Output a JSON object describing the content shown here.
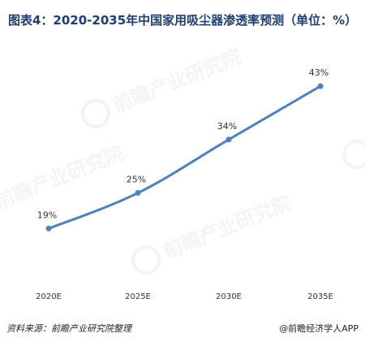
{
  "title": "图表4：2020-2035年中国家用吸尘器渗透率预测（单位：%）",
  "chart_data": {
    "type": "line",
    "title": "图表4：2020-2035年中国家用吸尘器渗透率预测（单位：%）",
    "categories": [
      "2020E",
      "2025E",
      "2030E",
      "2035E"
    ],
    "series": [
      {
        "values": [
          19,
          25,
          34,
          43
        ],
        "labels": [
          "19%",
          "25%",
          "34%",
          "43%"
        ],
        "color": "#4f81bd"
      }
    ],
    "ylim": [
      0,
      50
    ],
    "grid": false,
    "xlabel": "",
    "ylabel": ""
  },
  "footer": {
    "source": "资料来源：前瞻产业研究院整理",
    "credit": "@前瞻经济学人APP"
  },
  "watermark": {
    "text": "前瞻产业研究院"
  }
}
